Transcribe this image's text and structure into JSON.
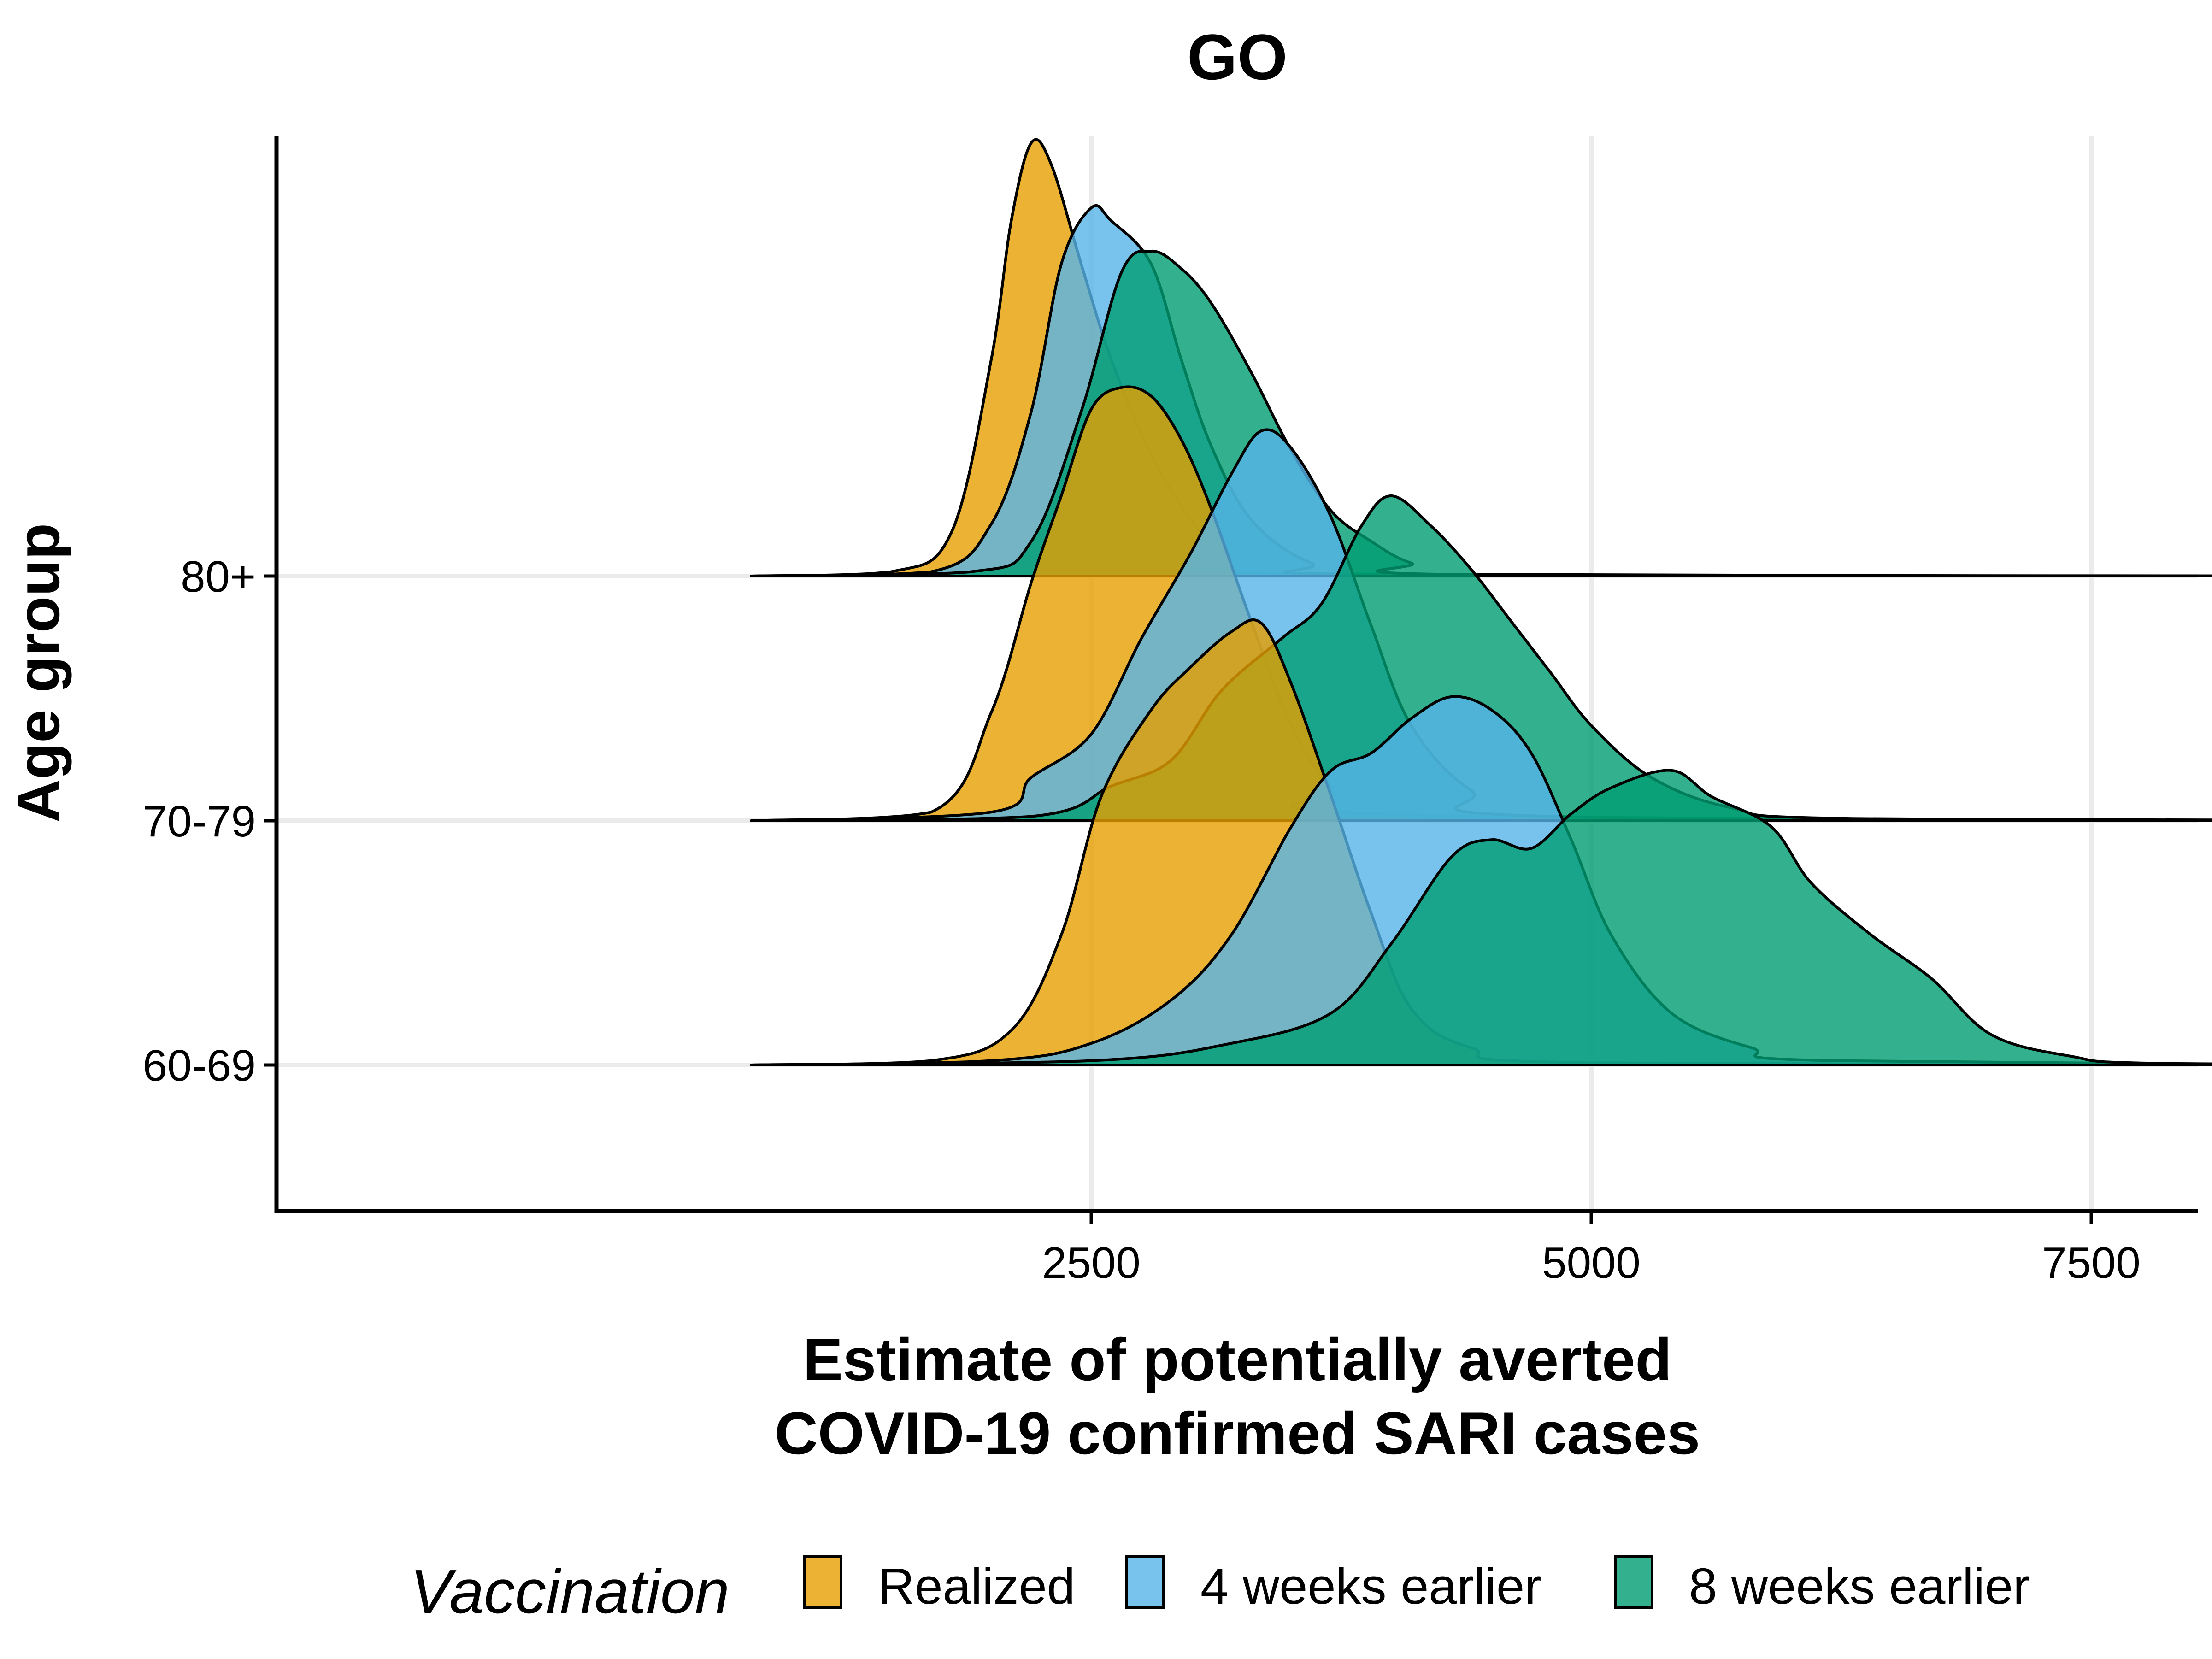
{
  "chart_data": {
    "type": "ridgeline",
    "title": "GO",
    "xlabel": [
      "Estimate of potentially averted",
      "COVID-19 confirmed SARI cases"
    ],
    "ylabel": "Age group",
    "xlim": [
      800,
      9500
    ],
    "xticks": [
      2500,
      5000,
      7500
    ],
    "xtick_labels": [
      "2500",
      "5000",
      "7500"
    ],
    "grid": true,
    "legend_position": "bottom",
    "legend": {
      "title": "Vaccination",
      "entries": [
        "Realized",
        "4 weeks earlier",
        "8 weeks earlier"
      ]
    },
    "categories": [
      "80+",
      "70-79",
      "60-69"
    ],
    "series": [
      {
        "name": "Realized",
        "color": "#E69F00"
      },
      {
        "name": "4 weeks earlier",
        "color": "#56B4E9"
      },
      {
        "name": "8 weeks earlier",
        "color": "#009E73"
      }
    ],
    "ridges": [
      {
        "category": "80+",
        "densities": [
          {
            "series": "Realized",
            "points": [
              [
                800,
                0
              ],
              [
                1500,
                0.01
              ],
              [
                1800,
                0.1
              ],
              [
                2000,
                0.5
              ],
              [
                2100,
                0.82
              ],
              [
                2200,
                1.0
              ],
              [
                2300,
                0.95
              ],
              [
                2450,
                0.72
              ],
              [
                2600,
                0.5
              ],
              [
                2800,
                0.28
              ],
              [
                3000,
                0.13
              ],
              [
                3200,
                0.04
              ],
              [
                3600,
                0.005
              ],
              [
                9500,
                0
              ]
            ]
          },
          {
            "series": "4 weeks earlier",
            "points": [
              [
                800,
                0
              ],
              [
                1700,
                0.01
              ],
              [
                2000,
                0.12
              ],
              [
                2200,
                0.38
              ],
              [
                2350,
                0.72
              ],
              [
                2500,
                0.85
              ],
              [
                2600,
                0.82
              ],
              [
                2800,
                0.72
              ],
              [
                2950,
                0.5
              ],
              [
                3100,
                0.3
              ],
              [
                3300,
                0.13
              ],
              [
                3600,
                0.03
              ],
              [
                4000,
                0.003
              ],
              [
                9500,
                0
              ]
            ]
          },
          {
            "series": "8 weeks earlier",
            "points": [
              [
                800,
                0
              ],
              [
                1900,
                0.01
              ],
              [
                2200,
                0.08
              ],
              [
                2450,
                0.38
              ],
              [
                2650,
                0.7
              ],
              [
                2800,
                0.75
              ],
              [
                2950,
                0.71
              ],
              [
                3100,
                0.63
              ],
              [
                3300,
                0.47
              ],
              [
                3500,
                0.29
              ],
              [
                3700,
                0.15
              ],
              [
                3900,
                0.08
              ],
              [
                4100,
                0.03
              ],
              [
                4400,
                0.003
              ],
              [
                9500,
                0
              ]
            ]
          }
        ]
      },
      {
        "category": "70-79",
        "densities": [
          {
            "series": "Realized",
            "points": [
              [
                800,
                0
              ],
              [
                1700,
                0.02
              ],
              [
                2000,
                0.25
              ],
              [
                2200,
                0.55
              ],
              [
                2350,
                0.75
              ],
              [
                2500,
                0.95
              ],
              [
                2650,
                1.0
              ],
              [
                2800,
                0.98
              ],
              [
                2950,
                0.88
              ],
              [
                3100,
                0.72
              ],
              [
                3300,
                0.46
              ],
              [
                3500,
                0.22
              ],
              [
                3700,
                0.08
              ],
              [
                4000,
                0.015
              ],
              [
                9500,
                0
              ]
            ]
          },
          {
            "series": "4 weeks earlier",
            "points": [
              [
                800,
                0
              ],
              [
                2000,
                0.02
              ],
              [
                2200,
                0.1
              ],
              [
                2500,
                0.2
              ],
              [
                2750,
                0.42
              ],
              [
                3000,
                0.62
              ],
              [
                3200,
                0.8
              ],
              [
                3350,
                0.9
              ],
              [
                3500,
                0.86
              ],
              [
                3700,
                0.7
              ],
              [
                3900,
                0.45
              ],
              [
                4100,
                0.22
              ],
              [
                4400,
                0.07
              ],
              [
                4800,
                0.01
              ],
              [
                9500,
                0
              ]
            ]
          },
          {
            "series": "8 weeks earlier",
            "points": [
              [
                800,
                0
              ],
              [
                2200,
                0.01
              ],
              [
                2600,
                0.08
              ],
              [
                2900,
                0.14
              ],
              [
                3150,
                0.3
              ],
              [
                3450,
                0.42
              ],
              [
                3650,
                0.5
              ],
              [
                3850,
                0.68
              ],
              [
                4000,
                0.75
              ],
              [
                4200,
                0.68
              ],
              [
                4400,
                0.58
              ],
              [
                4600,
                0.46
              ],
              [
                4800,
                0.34
              ],
              [
                5000,
                0.22
              ],
              [
                5300,
                0.1
              ],
              [
                5700,
                0.03
              ],
              [
                6300,
                0.005
              ],
              [
                9500,
                0
              ]
            ]
          }
        ]
      },
      {
        "category": "60-69",
        "densities": [
          {
            "series": "Realized",
            "points": [
              [
                800,
                0
              ],
              [
                1700,
                0.01
              ],
              [
                2100,
                0.08
              ],
              [
                2350,
                0.3
              ],
              [
                2550,
                0.62
              ],
              [
                2800,
                0.82
              ],
              [
                3000,
                0.92
              ],
              [
                3200,
                1.0
              ],
              [
                3350,
                1.02
              ],
              [
                3500,
                0.88
              ],
              [
                3700,
                0.62
              ],
              [
                3900,
                0.35
              ],
              [
                4100,
                0.13
              ],
              [
                4400,
                0.04
              ],
              [
                5000,
                0.005
              ],
              [
                9500,
                0
              ]
            ]
          },
          {
            "series": "4 weeks earlier",
            "points": [
              [
                800,
                0
              ],
              [
                2000,
                0.01
              ],
              [
                2500,
                0.05
              ],
              [
                2900,
                0.15
              ],
              [
                3200,
                0.3
              ],
              [
                3500,
                0.55
              ],
              [
                3700,
                0.68
              ],
              [
                3900,
                0.72
              ],
              [
                4100,
                0.8
              ],
              [
                4300,
                0.85
              ],
              [
                4500,
                0.82
              ],
              [
                4700,
                0.72
              ],
              [
                4900,
                0.52
              ],
              [
                5100,
                0.3
              ],
              [
                5400,
                0.12
              ],
              [
                5800,
                0.04
              ],
              [
                6200,
                0.01
              ],
              [
                9500,
                0
              ]
            ]
          },
          {
            "series": "8 weeks earlier",
            "points": [
              [
                800,
                0
              ],
              [
                2500,
                0.01
              ],
              [
                3200,
                0.05
              ],
              [
                3700,
                0.12
              ],
              [
                4000,
                0.28
              ],
              [
                4300,
                0.48
              ],
              [
                4500,
                0.52
              ],
              [
                4700,
                0.5
              ],
              [
                4900,
                0.58
              ],
              [
                5100,
                0.64
              ],
              [
                5400,
                0.68
              ],
              [
                5600,
                0.62
              ],
              [
                5900,
                0.55
              ],
              [
                6100,
                0.42
              ],
              [
                6400,
                0.3
              ],
              [
                6700,
                0.2
              ],
              [
                7000,
                0.07
              ],
              [
                7400,
                0.02
              ],
              [
                7800,
                0.004
              ],
              [
                9500,
                0
              ]
            ]
          }
        ]
      }
    ]
  }
}
